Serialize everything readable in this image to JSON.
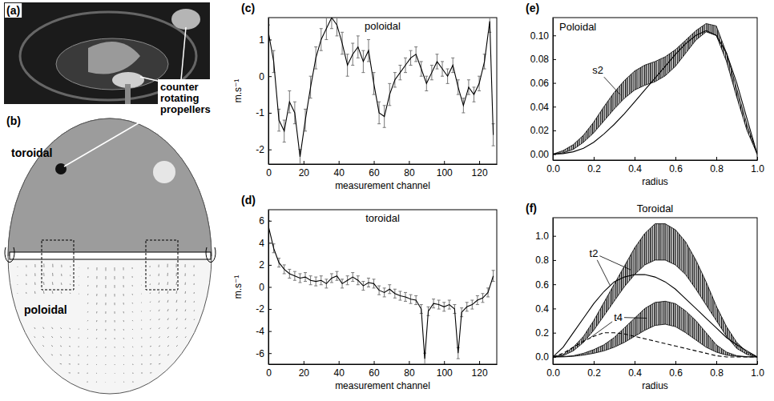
{
  "images": [
    {
      "panel_label": "(a)",
      "annotation": "counter rotating propellers"
    },
    {
      "panel_label": "(b)",
      "labels": [
        "toroidal",
        "poloidal"
      ]
    }
  ],
  "chart_data": [
    {
      "type": "line",
      "title": "poloidal",
      "panel_label": "(c)",
      "xlabel": "measurement channel",
      "ylabel": "m.s⁻¹",
      "xlim": [
        0,
        130
      ],
      "xticks": [
        0,
        20,
        40,
        60,
        80,
        100,
        120
      ],
      "ylim": [
        -2.4,
        1.6
      ],
      "yticks": [
        -2,
        -1,
        0,
        1
      ],
      "x": [
        0,
        3,
        6,
        9,
        12,
        15,
        18,
        21,
        24,
        27,
        30,
        33,
        36,
        39,
        42,
        45,
        48,
        51,
        54,
        57,
        60,
        63,
        66,
        69,
        72,
        75,
        78,
        81,
        84,
        87,
        90,
        93,
        96,
        99,
        102,
        105,
        108,
        111,
        114,
        117,
        120,
        123,
        126,
        128
      ],
      "series": [
        {
          "type": "line",
          "color": "#000000",
          "values": [
            1.2,
            0.4,
            -1.2,
            -1.5,
            -0.7,
            -1.0,
            -2.2,
            -1.2,
            -0.3,
            0.5,
            1.0,
            1.3,
            1.6,
            1.4,
            0.9,
            0.3,
            0.6,
            0.8,
            0.4,
            0.7,
            -0.2,
            -1.0,
            -1.1,
            -0.5,
            -0.1,
            0.1,
            0.3,
            0.5,
            0.6,
            0.2,
            -0.2,
            0.1,
            0.4,
            0.2,
            0.0,
            0.3,
            -0.3,
            -0.8,
            -0.3,
            -0.5,
            -0.2,
            0.4,
            1.5,
            -1.6
          ],
          "errors": [
            0.2,
            0.3,
            0.3,
            0.3,
            0.3,
            0.3,
            0.2,
            0.3,
            0.3,
            0.3,
            0.3,
            0.3,
            0.3,
            0.3,
            0.3,
            0.3,
            0.3,
            0.3,
            0.3,
            0.3,
            0.3,
            0.3,
            0.3,
            0.3,
            0.2,
            0.2,
            0.2,
            0.2,
            0.2,
            0.2,
            0.2,
            0.2,
            0.2,
            0.2,
            0.2,
            0.2,
            0.2,
            0.2,
            0.2,
            0.2,
            0.2,
            0.2,
            0.3,
            0.3
          ]
        }
      ]
    },
    {
      "type": "line",
      "title": "toroidal",
      "panel_label": "(d)",
      "xlabel": "measurement channel",
      "ylabel": "m.s⁻¹",
      "xlim": [
        0,
        130
      ],
      "xticks": [
        0,
        20,
        40,
        60,
        80,
        100,
        120
      ],
      "ylim": [
        -7,
        7
      ],
      "yticks": [
        -6,
        -4,
        -2,
        0,
        2,
        4,
        6
      ],
      "x": [
        0,
        3,
        6,
        9,
        12,
        15,
        18,
        21,
        24,
        27,
        30,
        33,
        36,
        39,
        42,
        45,
        48,
        51,
        54,
        57,
        60,
        63,
        66,
        69,
        72,
        75,
        78,
        81,
        84,
        87,
        89,
        91,
        94,
        97,
        100,
        103,
        106,
        108,
        110,
        113,
        116,
        119,
        122,
        125,
        128
      ],
      "series": [
        {
          "type": "line",
          "color": "#000000",
          "values": [
            5.5,
            3.5,
            2.2,
            1.6,
            1.2,
            1.0,
            0.8,
            0.9,
            0.6,
            0.5,
            0.6,
            0.3,
            0.8,
            1.0,
            0.3,
            0.6,
            0.9,
            0.6,
            0.1,
            0.4,
            0.3,
            -0.3,
            -0.5,
            -0.2,
            -0.6,
            -0.8,
            -0.9,
            -1.1,
            -1.2,
            -2.0,
            -6.5,
            -2.2,
            -1.5,
            -1.6,
            -1.8,
            -1.6,
            -2.0,
            -6.0,
            -2.3,
            -1.8,
            -1.6,
            -1.2,
            -1.0,
            -0.5,
            1.0
          ],
          "errors": [
            0.5,
            0.4,
            0.4,
            0.4,
            0.4,
            0.4,
            0.4,
            0.4,
            0.4,
            0.4,
            0.4,
            0.4,
            0.4,
            0.4,
            0.4,
            0.4,
            0.4,
            0.4,
            0.4,
            0.4,
            0.4,
            0.4,
            0.4,
            0.4,
            0.4,
            0.4,
            0.4,
            0.4,
            0.4,
            0.4,
            0.5,
            0.4,
            0.4,
            0.4,
            0.4,
            0.4,
            0.4,
            0.5,
            0.4,
            0.4,
            0.4,
            0.4,
            0.4,
            0.4,
            0.5
          ]
        }
      ]
    },
    {
      "type": "line",
      "title": "Poloidal",
      "panel_label": "(e)",
      "xlabel": "radius",
      "xlim": [
        0,
        1
      ],
      "xticks": [
        {
          "value": 0,
          "label": "0.0"
        },
        0.2,
        0.4,
        0.6,
        0.8,
        {
          "value": 1,
          "label": "1.0"
        }
      ],
      "ylim": [
        -0.005,
        0.115
      ],
      "yticks": [
        {
          "value": 0,
          "label": "0.00"
        },
        0.02,
        0.04,
        0.06,
        0.08,
        {
          "value": 0.1,
          "label": "0.10"
        }
      ],
      "x": [
        0,
        0.05,
        0.1,
        0.15,
        0.2,
        0.25,
        0.3,
        0.35,
        0.4,
        0.45,
        0.5,
        0.55,
        0.6,
        0.65,
        0.7,
        0.75,
        0.8,
        0.85,
        0.9,
        0.95,
        1
      ],
      "series": [
        {
          "type": "band",
          "color": "#000000",
          "lower": [
            0,
            0.001,
            0.004,
            0.01,
            0.018,
            0.028,
            0.038,
            0.047,
            0.054,
            0.058,
            0.061,
            0.066,
            0.074,
            0.085,
            0.096,
            0.103,
            0.1,
            0.078,
            0.048,
            0.02,
            0
          ],
          "upper": [
            0,
            0.003,
            0.008,
            0.016,
            0.027,
            0.04,
            0.052,
            0.062,
            0.07,
            0.075,
            0.078,
            0.082,
            0.088,
            0.096,
            0.104,
            0.11,
            0.108,
            0.085,
            0.055,
            0.025,
            0
          ]
        },
        {
          "type": "line",
          "color": "#000000",
          "line_style": "solid",
          "values": [
            0,
            0.0005,
            0.002,
            0.005,
            0.01,
            0.017,
            0.025,
            0.034,
            0.044,
            0.054,
            0.064,
            0.074,
            0.084,
            0.093,
            0.1,
            0.104,
            0.1,
            0.085,
            0.06,
            0.03,
            0
          ]
        }
      ],
      "annotations": [
        {
          "text": "s2",
          "x": 0.22,
          "y": 0.07,
          "arrows": [
            {
              "x": 0.33,
              "y": 0.05
            }
          ]
        }
      ]
    },
    {
      "type": "line",
      "title": "Toroidal",
      "panel_label": "(f)",
      "xlabel": "radius",
      "xlim": [
        0,
        1
      ],
      "xticks": [
        {
          "value": 0,
          "label": "0.0"
        },
        0.2,
        0.4,
        0.6,
        0.8,
        {
          "value": 1,
          "label": "1.0"
        }
      ],
      "ylim": [
        -0.06,
        1.15
      ],
      "yticks": [
        {
          "value": 0,
          "label": "0.0"
        },
        0.2,
        0.4,
        0.6,
        0.8,
        {
          "value": 1,
          "label": "1.0"
        }
      ],
      "x": [
        0,
        0.05,
        0.1,
        0.15,
        0.2,
        0.25,
        0.3,
        0.35,
        0.4,
        0.45,
        0.5,
        0.55,
        0.6,
        0.65,
        0.7,
        0.75,
        0.8,
        0.85,
        0.9,
        0.95,
        1
      ],
      "series": [
        {
          "type": "band",
          "color": "#000000",
          "lower": [
            0,
            0.01,
            0.05,
            0.12,
            0.22,
            0.34,
            0.46,
            0.58,
            0.68,
            0.76,
            0.8,
            0.8,
            0.76,
            0.68,
            0.56,
            0.43,
            0.3,
            0.17,
            0.07,
            0.02,
            0
          ],
          "upper": [
            0,
            0.02,
            0.08,
            0.17,
            0.3,
            0.45,
            0.6,
            0.75,
            0.9,
            1.02,
            1.1,
            1.1,
            1.05,
            0.95,
            0.8,
            0.62,
            0.42,
            0.25,
            0.12,
            0.04,
            0
          ]
        },
        {
          "type": "line",
          "color": "#000000",
          "line_style": "solid",
          "values": [
            0,
            0.08,
            0.2,
            0.32,
            0.44,
            0.54,
            0.62,
            0.66,
            0.68,
            0.68,
            0.66,
            0.62,
            0.56,
            0.48,
            0.4,
            0.32,
            0.24,
            0.16,
            0.1,
            0.05,
            0
          ]
        },
        {
          "type": "band",
          "color": "#000000",
          "lower": [
            0,
            0,
            0.005,
            0.015,
            0.03,
            0.05,
            0.08,
            0.12,
            0.17,
            0.22,
            0.26,
            0.27,
            0.25,
            0.2,
            0.14,
            0.08,
            0.04,
            0.015,
            0.005,
            0,
            0
          ],
          "upper": [
            0,
            0.003,
            0.01,
            0.03,
            0.06,
            0.1,
            0.16,
            0.24,
            0.32,
            0.4,
            0.45,
            0.46,
            0.44,
            0.38,
            0.3,
            0.2,
            0.1,
            0.04,
            0.01,
            0.002,
            0
          ]
        },
        {
          "type": "line",
          "color": "#000000",
          "line_style": "dashed",
          "values": [
            0,
            0.03,
            0.08,
            0.13,
            0.17,
            0.2,
            0.2,
            0.19,
            0.17,
            0.15,
            0.13,
            0.11,
            0.09,
            0.07,
            0.05,
            0.03,
            0.01,
            0,
            0,
            0,
            0
          ]
        }
      ],
      "annotations": [
        {
          "text": "t2",
          "x": 0.2,
          "y": 0.85,
          "arrows": [
            {
              "x": 0.38,
              "y": 0.72
            },
            {
              "x": 0.28,
              "y": 0.59
            }
          ]
        },
        {
          "text": "t4",
          "x": 0.32,
          "y": 0.32,
          "arrows": [
            {
              "x": 0.18,
              "y": 0.155
            },
            {
              "x": 0.46,
              "y": 0.32
            }
          ]
        }
      ]
    }
  ]
}
